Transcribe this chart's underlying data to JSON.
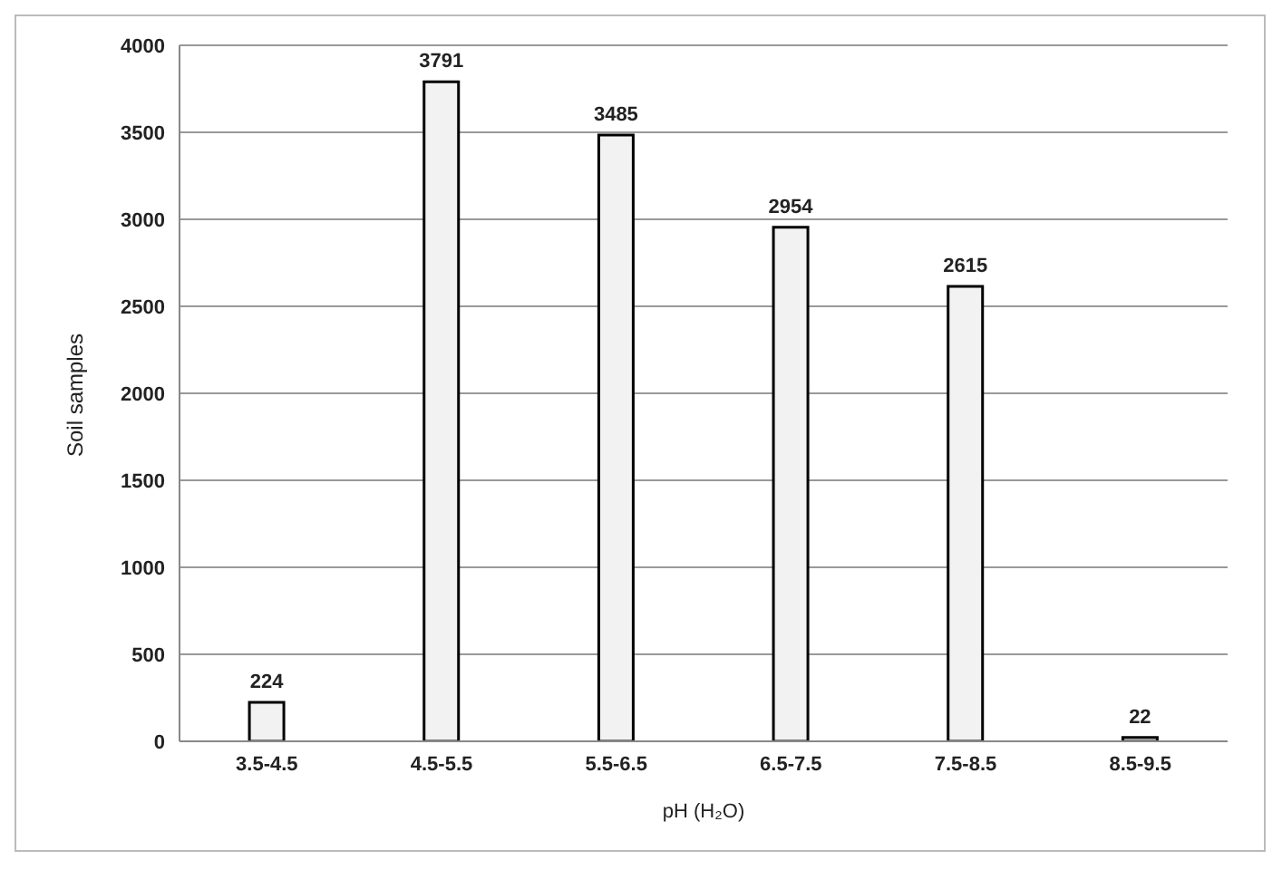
{
  "chart_data": {
    "type": "bar",
    "xlabel": "pH (H₂O)",
    "ylabel": "Soil samples",
    "categories": [
      "3.5-4.5",
      "4.5-5.5",
      "5.5-6.5",
      "6.5-7.5",
      "7.5-8.5",
      "8.5-9.5"
    ],
    "values": [
      224,
      3791,
      3485,
      2954,
      2615,
      22
    ],
    "color": "#f2f2f2",
    "ylim": [
      0,
      4000
    ],
    "yticks": [
      0,
      500,
      1000,
      1500,
      2000,
      2500,
      3000,
      3500,
      4000
    ],
    "grid": "y",
    "data_labels": true
  }
}
